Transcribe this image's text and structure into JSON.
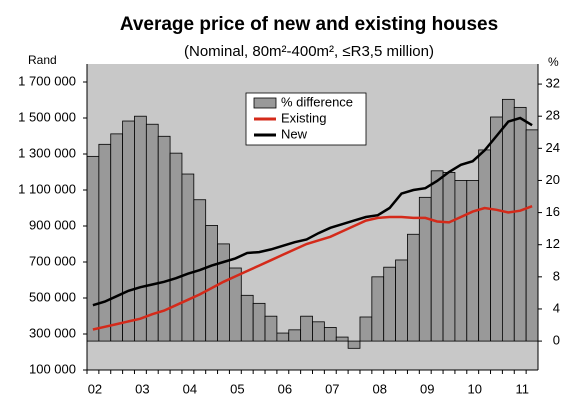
{
  "chart_data": {
    "type": "bar_line",
    "title": "Average price of new and existing houses",
    "subtitle": "(Nominal, 80m²-400m², ≤R3,5 million)",
    "ylabel": "Rand",
    "y2label": "%",
    "categories": [
      "02",
      null,
      null,
      null,
      "03",
      null,
      null,
      null,
      "04",
      null,
      null,
      null,
      "05",
      null,
      null,
      null,
      "06",
      null,
      null,
      null,
      "07",
      null,
      null,
      null,
      "08",
      null,
      null,
      null,
      "09",
      null,
      null,
      null,
      "10",
      null,
      null,
      null,
      "11",
      null
    ],
    "series": [
      {
        "name": "% difference",
        "type": "bar",
        "axis": "y2",
        "color": "#999999",
        "values": [
          23.0,
          24.5,
          25.8,
          27.4,
          28.0,
          27.0,
          25.5,
          23.4,
          20.8,
          17.6,
          14.4,
          12.1,
          9.1,
          5.7,
          4.7,
          3.1,
          1.0,
          1.4,
          3.1,
          2.4,
          1.7,
          0.5,
          -0.9,
          3.0,
          8.0,
          9.2,
          10.1,
          13.3,
          17.9,
          21.2,
          21.0,
          20.0,
          20.0,
          23.8,
          27.9,
          30.1,
          29.1,
          26.3
        ]
      },
      {
        "name": "Existing",
        "type": "line",
        "color": "#d42a1a",
        "values": [
          325000,
          340000,
          355000,
          370000,
          385000,
          410000,
          430000,
          460000,
          490000,
          520000,
          555000,
          590000,
          620000,
          650000,
          680000,
          710000,
          740000,
          770000,
          800000,
          820000,
          840000,
          870000,
          900000,
          930000,
          945000,
          950000,
          950000,
          945000,
          945000,
          925000,
          920000,
          950000,
          980000,
          1000000,
          990000,
          975000,
          985000,
          1010000
        ]
      },
      {
        "name": "New",
        "type": "line",
        "color": "#000000",
        "values": [
          460000,
          480000,
          510000,
          540000,
          560000,
          575000,
          590000,
          610000,
          635000,
          655000,
          680000,
          700000,
          720000,
          750000,
          755000,
          770000,
          790000,
          810000,
          825000,
          860000,
          890000,
          910000,
          930000,
          950000,
          960000,
          1000000,
          1080000,
          1100000,
          1110000,
          1150000,
          1200000,
          1240000,
          1260000,
          1320000,
          1400000,
          1480000,
          1500000,
          1460000
        ]
      }
    ],
    "ylim": [
      100000,
      1800000
    ],
    "yticks": [
      {
        "value": 100000,
        "label": "100 000"
      },
      {
        "value": 300000,
        "label": "300 000"
      },
      {
        "value": 500000,
        "label": "500 000"
      },
      {
        "value": 700000,
        "label": "700 000"
      },
      {
        "value": 900000,
        "label": "900 000"
      },
      {
        "value": 1100000,
        "label": "1 100 000"
      },
      {
        "value": 1300000,
        "label": "1 300 000"
      },
      {
        "value": 1500000,
        "label": "1 500 000"
      },
      {
        "value": 1700000,
        "label": "1 700 000"
      }
    ],
    "y2lim": [
      -3.6,
      34.5
    ],
    "y2ticks": [
      0,
      4,
      8,
      12,
      16,
      20,
      24,
      28,
      32
    ],
    "legend": "top"
  }
}
